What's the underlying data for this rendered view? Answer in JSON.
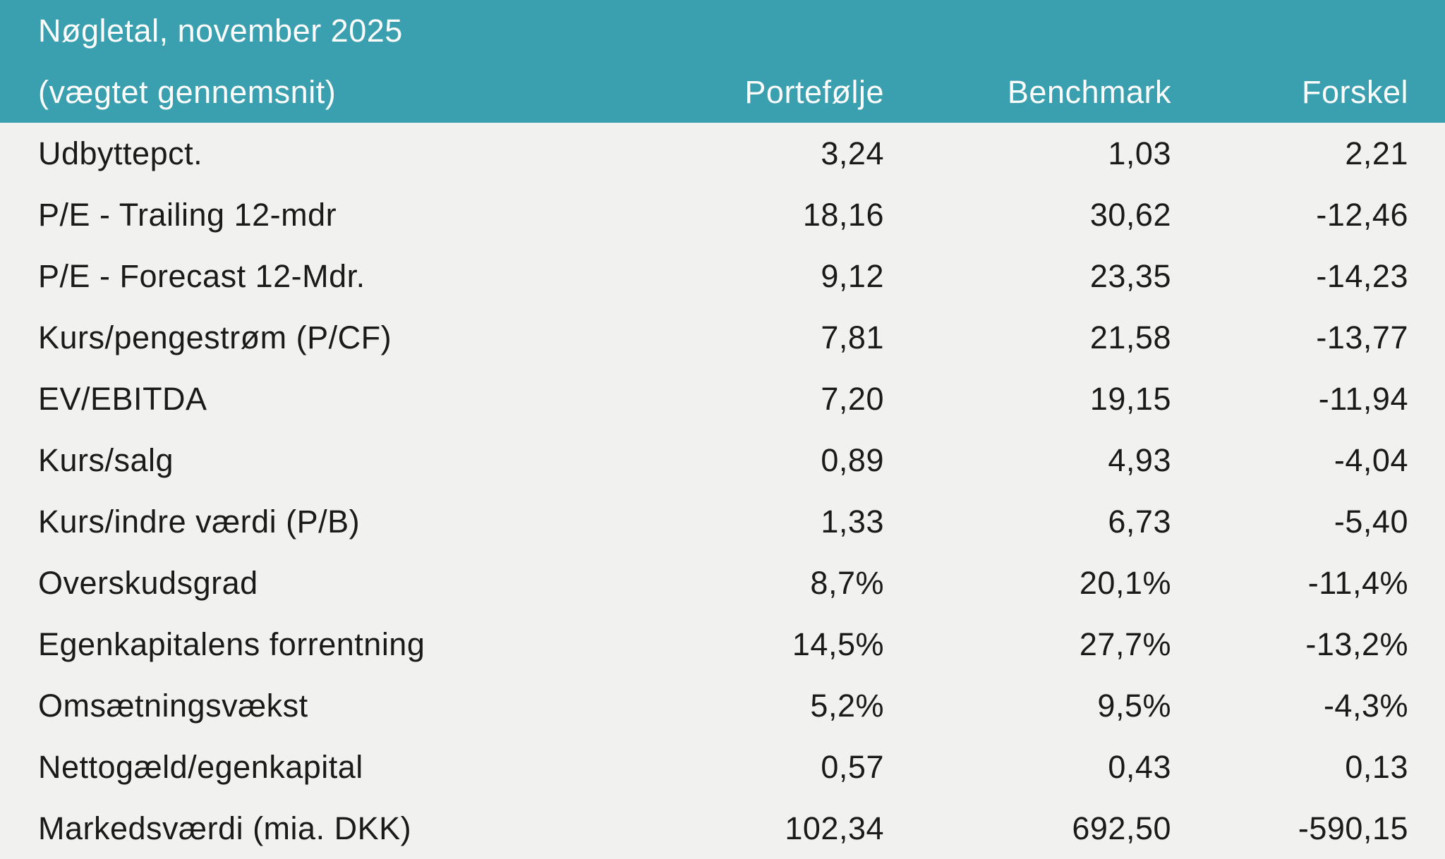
{
  "table": {
    "title_line1": "Nøgletal, november 2025",
    "title_line2": "(vægtet gennemsnit)",
    "columns": [
      "Portefølje",
      "Benchmark",
      "Forskel"
    ],
    "rows": [
      {
        "label": "Udbyttepct.",
        "portfolio": "3,24",
        "benchmark": "1,03",
        "difference": "2,21"
      },
      {
        "label": "P/E - Trailing 12-mdr",
        "portfolio": "18,16",
        "benchmark": "30,62",
        "difference": "-12,46"
      },
      {
        "label": "P/E - Forecast 12-Mdr.",
        "portfolio": "9,12",
        "benchmark": "23,35",
        "difference": "-14,23"
      },
      {
        "label": "Kurs/pengestrøm (P/CF)",
        "portfolio": "7,81",
        "benchmark": "21,58",
        "difference": "-13,77"
      },
      {
        "label": "EV/EBITDA",
        "portfolio": "7,20",
        "benchmark": "19,15",
        "difference": "-11,94"
      },
      {
        "label": "Kurs/salg",
        "portfolio": "0,89",
        "benchmark": "4,93",
        "difference": "-4,04"
      },
      {
        "label": "Kurs/indre værdi (P/B)",
        "portfolio": "1,33",
        "benchmark": "6,73",
        "difference": "-5,40"
      },
      {
        "label": "Overskudsgrad",
        "portfolio": "8,7%",
        "benchmark": "20,1%",
        "difference": "-11,4%"
      },
      {
        "label": "Egenkapitalens forrentning",
        "portfolio": "14,5%",
        "benchmark": "27,7%",
        "difference": "-13,2%"
      },
      {
        "label": "Omsætningsvækst",
        "portfolio": "5,2%",
        "benchmark": "9,5%",
        "difference": "-4,3%"
      },
      {
        "label": "Nettogæld/egenkapital",
        "portfolio": "0,57",
        "benchmark": "0,43",
        "difference": "0,13"
      },
      {
        "label": "Markedsværdi (mia. DKK)",
        "portfolio": "102,34",
        "benchmark": "692,50",
        "difference": "-590,15"
      }
    ]
  },
  "colors": {
    "header_bg": "#3AA0AF",
    "header_text": "#FCFCFC",
    "body_bg": "#F1F1EF",
    "body_text": "#1A1A1A"
  }
}
